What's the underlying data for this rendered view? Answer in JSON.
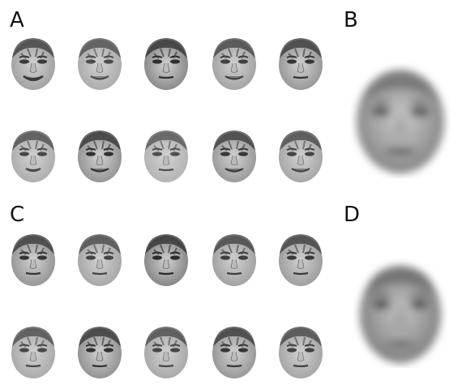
{
  "panels": [
    {
      "label": "A",
      "kind": "grid",
      "rows": 2,
      "cols": 5
    },
    {
      "label": "B",
      "kind": "average"
    },
    {
      "label": "C",
      "kind": "grid",
      "rows": 2,
      "cols": 5
    },
    {
      "label": "D",
      "kind": "average"
    }
  ],
  "faces": {
    "A": [
      {
        "tone": "#9a9a9a",
        "dark": "#3a3a3a",
        "expression": "smile-open"
      },
      {
        "tone": "#a6a6a6",
        "dark": "#4a4a4a",
        "expression": "smile"
      },
      {
        "tone": "#7e7e7e",
        "dark": "#2e2e2e",
        "expression": "neutral"
      },
      {
        "tone": "#9c9c9c",
        "dark": "#404040",
        "expression": "smile"
      },
      {
        "tone": "#8e8e8e",
        "dark": "#353535",
        "expression": "neutral"
      },
      {
        "tone": "#a8a8a8",
        "dark": "#484848",
        "expression": "open"
      },
      {
        "tone": "#8a8a8a",
        "dark": "#303030",
        "expression": "smile"
      },
      {
        "tone": "#b0b0b0",
        "dark": "#505050",
        "expression": "neutral"
      },
      {
        "tone": "#909090",
        "dark": "#383838",
        "expression": "smile"
      },
      {
        "tone": "#a0a0a0",
        "dark": "#444444",
        "expression": "smile"
      }
    ],
    "C": [
      {
        "tone": "#8c8c8c",
        "dark": "#353535",
        "expression": "neutral"
      },
      {
        "tone": "#a0a0a0",
        "dark": "#444444",
        "expression": "neutral"
      },
      {
        "tone": "#7a7a7a",
        "dark": "#2c2c2c",
        "expression": "neutral"
      },
      {
        "tone": "#9a9a9a",
        "dark": "#3e3e3e",
        "expression": "neutral"
      },
      {
        "tone": "#959595",
        "dark": "#3a3a3a",
        "expression": "neutral"
      },
      {
        "tone": "#a4a4a4",
        "dark": "#484848",
        "expression": "neutral"
      },
      {
        "tone": "#888888",
        "dark": "#323232",
        "expression": "neutral"
      },
      {
        "tone": "#a2a2a2",
        "dark": "#464646",
        "expression": "neutral"
      },
      {
        "tone": "#8e8e8e",
        "dark": "#363636",
        "expression": "neutral"
      },
      {
        "tone": "#9e9e9e",
        "dark": "#424242",
        "expression": "neutral"
      }
    ]
  }
}
